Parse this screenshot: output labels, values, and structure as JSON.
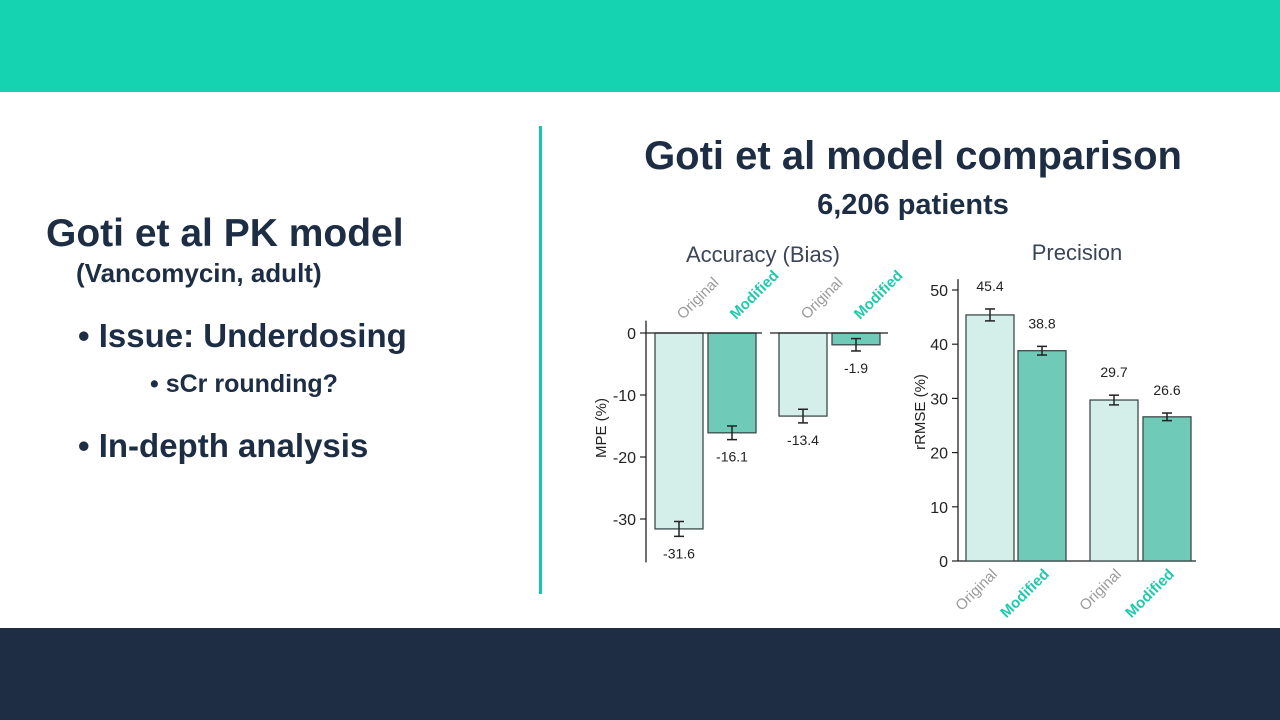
{
  "left": {
    "title": "Goti et al PK model",
    "subtitle": "(Vancomycin, adult)",
    "bullets": [
      {
        "text": "Issue: Underdosing",
        "level": 1
      },
      {
        "text": "sCr rounding?",
        "level": 2
      },
      {
        "text": "In-depth analysis",
        "level": 1
      }
    ]
  },
  "right": {
    "title": "Goti et al model comparison",
    "subtitle": "6,206 patients"
  },
  "colors": {
    "top_band": "#15d2b1",
    "bottom_band": "#1e2d43",
    "divider": "#15c8ad",
    "original_fill": "#d4efea",
    "modified_fill": "#6fcbb7",
    "modified_label": "#20c9ad",
    "original_label": "#9a9a9a"
  },
  "chart_data": [
    {
      "type": "bar",
      "title": "Accuracy (Bias)",
      "ylabel": "MPE (%)",
      "ylim": [
        -37,
        2
      ],
      "yticks": [
        0,
        -10,
        -20,
        -30
      ],
      "groups": [
        {
          "bars": [
            {
              "label": "Original",
              "value": -31.6,
              "value_label": "-31.6",
              "err": 1.2
            },
            {
              "label": "Modified",
              "value": -16.1,
              "value_label": "-16.1",
              "err": 1.1
            }
          ]
        },
        {
          "bars": [
            {
              "label": "Original",
              "value": -13.4,
              "value_label": "-13.4",
              "err": 1.1
            },
            {
              "label": "Modified",
              "value": -1.9,
              "value_label": "-1.9",
              "err": 1.0
            }
          ]
        }
      ]
    },
    {
      "type": "bar",
      "title": "Precision",
      "ylabel": "rRMSE (%)",
      "ylim": [
        0,
        52
      ],
      "yticks": [
        0,
        10,
        20,
        30,
        40,
        50
      ],
      "groups": [
        {
          "bars": [
            {
              "label": "Original",
              "value": 45.4,
              "value_label": "45.4",
              "err": 1.1
            },
            {
              "label": "Modified",
              "value": 38.8,
              "value_label": "38.8",
              "err": 0.8
            }
          ]
        },
        {
          "bars": [
            {
              "label": "Original",
              "value": 29.7,
              "value_label": "29.7",
              "err": 0.9
            },
            {
              "label": "Modified",
              "value": 26.6,
              "value_label": "26.6",
              "err": 0.7
            }
          ]
        }
      ]
    }
  ]
}
